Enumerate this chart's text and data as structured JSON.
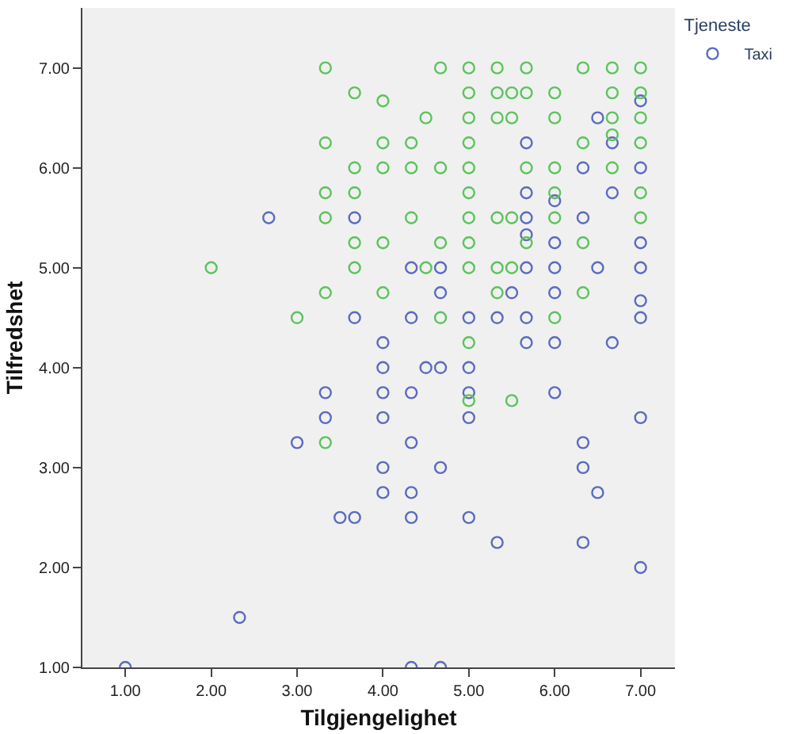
{
  "chart_data": {
    "type": "scatter",
    "xlabel": "Tilgjengelighet",
    "ylabel": "Tilfredshet",
    "legend_title": "Tjeneste",
    "xlim": [
      0.5,
      7.4
    ],
    "ylim": [
      1.0,
      7.6
    ],
    "xticks": [
      {
        "value": 1,
        "label": "1.00"
      },
      {
        "value": 2,
        "label": "2.00"
      },
      {
        "value": 3,
        "label": "3.00"
      },
      {
        "value": 4,
        "label": "4.00"
      },
      {
        "value": 5,
        "label": "5.00"
      },
      {
        "value": 6,
        "label": "6.00"
      },
      {
        "value": 7,
        "label": "7.00"
      }
    ],
    "yticks": [
      {
        "value": 1,
        "label": "1.00"
      },
      {
        "value": 2,
        "label": "2.00"
      },
      {
        "value": 3,
        "label": "3.00"
      },
      {
        "value": 4,
        "label": "4.00"
      },
      {
        "value": 5,
        "label": "5.00"
      },
      {
        "value": 6,
        "label": "6.00"
      },
      {
        "value": 7,
        "label": "7.00"
      }
    ],
    "grid": false,
    "legend": "top right",
    "marker": "circle",
    "series": [
      {
        "name": "Taxi",
        "color": "#5b6bc0",
        "x": [
          2.67,
          3.67,
          3.67,
          4,
          4,
          3.33,
          3.33,
          3,
          4,
          4,
          4,
          3.5,
          3.67,
          2.33,
          1,
          4.5,
          4.67,
          5,
          4.33,
          5,
          6,
          5,
          7,
          4.33,
          6.33,
          4.67,
          6.33,
          4.33,
          6.5,
          4.33,
          5,
          5.33,
          6.33,
          7,
          4.33,
          4.67,
          7,
          6.5,
          5.67,
          6.67,
          6.33,
          7,
          5.67,
          6.67,
          6,
          5.67,
          6.33,
          5.67,
          6,
          7,
          4.33,
          4.67,
          5.67,
          6,
          6.5,
          7,
          7,
          4.67,
          5.5,
          6,
          4.33,
          5,
          5.33,
          5.67,
          7,
          4,
          5.67,
          6,
          6.67
        ],
        "values": [
          5.5,
          5.5,
          4.5,
          4.25,
          4.0,
          3.75,
          3.5,
          3.25,
          3.75,
          3.5,
          3.0,
          2.5,
          2.5,
          1.5,
          1.0,
          4.0,
          4.0,
          4.0,
          3.75,
          3.75,
          3.75,
          3.5,
          3.5,
          3.25,
          3.25,
          3.0,
          3.0,
          2.75,
          2.75,
          2.5,
          2.5,
          2.25,
          2.25,
          2.0,
          1.0,
          1.0,
          6.67,
          6.5,
          6.25,
          6.25,
          6.0,
          6.0,
          5.75,
          5.75,
          5.67,
          5.5,
          5.5,
          5.33,
          5.25,
          5.25,
          5.0,
          5.0,
          5.0,
          5.0,
          5.0,
          5.0,
          4.67,
          4.75,
          4.75,
          4.75,
          4.5,
          4.5,
          4.5,
          4.5,
          4.5,
          2.75,
          4.25,
          4.25,
          4.25
        ]
      },
      {
        "color": "#5cc45c",
        "x": [
          2,
          3,
          3.33,
          3.33,
          3.33,
          3.33,
          3.33,
          3.33,
          3.67,
          3.67,
          3.67,
          3.67,
          3.67,
          4,
          4,
          4,
          4,
          4,
          5,
          5.5,
          4.67,
          5,
          5.33,
          5.67,
          6.33,
          6.67,
          7,
          5,
          5.33,
          5.5,
          5.67,
          6,
          6.67,
          7,
          4.5,
          5,
          5.33,
          5.5,
          6,
          6.67,
          7,
          6.67,
          4.33,
          5,
          6.33,
          7,
          4.33,
          4.67,
          5,
          5.67,
          6,
          6.67,
          5,
          6,
          7,
          4.33,
          5,
          5.33,
          5.5,
          6,
          7,
          4.67,
          5,
          5.67,
          6.33,
          4.5,
          5,
          5.33,
          5.5,
          5.33,
          6.33,
          4.67,
          6,
          5
        ],
        "values": [
          5.0,
          4.5,
          7.0,
          6.25,
          5.75,
          5.5,
          4.75,
          3.25,
          6.75,
          6.0,
          5.75,
          5.25,
          5.0,
          6.67,
          6.25,
          6.0,
          5.25,
          4.75,
          3.67,
          3.67,
          7.0,
          7.0,
          7.0,
          7.0,
          7.0,
          7.0,
          7.0,
          6.75,
          6.75,
          6.75,
          6.75,
          6.75,
          6.75,
          6.75,
          6.5,
          6.5,
          6.5,
          6.5,
          6.5,
          6.5,
          6.5,
          6.33,
          6.25,
          6.25,
          6.25,
          6.25,
          6.0,
          6.0,
          6.0,
          6.0,
          6.0,
          6.0,
          5.75,
          5.75,
          5.75,
          5.5,
          5.5,
          5.5,
          5.5,
          5.5,
          5.5,
          5.25,
          5.25,
          5.25,
          5.25,
          5.0,
          5.0,
          5.0,
          5.0,
          4.75,
          4.75,
          4.5,
          4.5,
          4.25
        ]
      }
    ]
  }
}
